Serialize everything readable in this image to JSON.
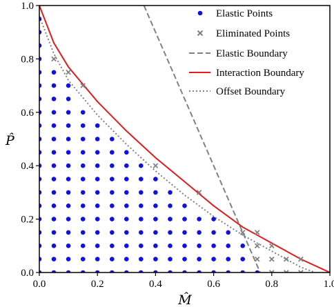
{
  "chart_data": {
    "type": "scatter",
    "xlabel": "M̂",
    "ylabel": "P̂",
    "xlim": [
      0,
      1
    ],
    "ylim": [
      0,
      1
    ],
    "xticks": [
      "0.0",
      "0.2",
      "0.4",
      "0.6",
      "0.8",
      "1.0"
    ],
    "yticks": [
      "0.0",
      "0.2",
      "0.4",
      "0.6",
      "0.8",
      "1.0"
    ],
    "grid": false,
    "legend_position": "top-right",
    "legend": [
      "Elastic Points",
      "Eliminated Points",
      "Elastic Boundary",
      "Interaction Boundary",
      "Offset Boundary"
    ],
    "series": [
      {
        "name": "Elastic Points",
        "kind": "points",
        "color": "#1010e0",
        "grid_step": 0.05,
        "points": "all grid points (x, y) with step 0.05, x >= 0, y >= 0, that lie inside both the Elastic Boundary and the Offset Boundary"
      },
      {
        "name": "Eliminated Points",
        "kind": "crosses",
        "color": "#808080",
        "x": [
          0.05,
          0.1,
          0.15,
          0.4,
          0.55,
          0.7,
          0.75,
          0.75,
          0.75,
          0.8,
          0.8,
          0.8,
          0.85,
          0.85,
          0.9,
          0.9
        ],
        "y": [
          0.8,
          0.75,
          0.7,
          0.4,
          0.3,
          0.15,
          0.15,
          0.1,
          0.05,
          0.1,
          0.05,
          0.0,
          0.05,
          0.0,
          0.05,
          0.0
        ]
      },
      {
        "name": "Elastic Boundary",
        "kind": "line",
        "style": "dashed",
        "color": "#808080",
        "x": [
          0.36,
          0.76
        ],
        "y": [
          1.0,
          0.0
        ]
      },
      {
        "name": "Interaction Boundary",
        "kind": "line",
        "style": "solid",
        "color": "#e31a1c",
        "x": [
          0.0,
          0.05,
          0.1,
          0.2,
          0.3,
          0.4,
          0.5,
          0.6,
          0.7,
          0.8,
          0.9,
          1.0
        ],
        "y": [
          1.0,
          0.86,
          0.77,
          0.64,
          0.53,
          0.43,
          0.34,
          0.25,
          0.17,
          0.11,
          0.05,
          0.0
        ]
      },
      {
        "name": "Offset Boundary",
        "kind": "line",
        "style": "dotted",
        "color": "#808080",
        "x": [
          0.0,
          0.05,
          0.1,
          0.2,
          0.3,
          0.4,
          0.5,
          0.6,
          0.7,
          0.8,
          0.9,
          0.95
        ],
        "y": [
          0.96,
          0.82,
          0.72,
          0.59,
          0.48,
          0.38,
          0.29,
          0.21,
          0.14,
          0.08,
          0.02,
          0.0
        ]
      }
    ]
  }
}
